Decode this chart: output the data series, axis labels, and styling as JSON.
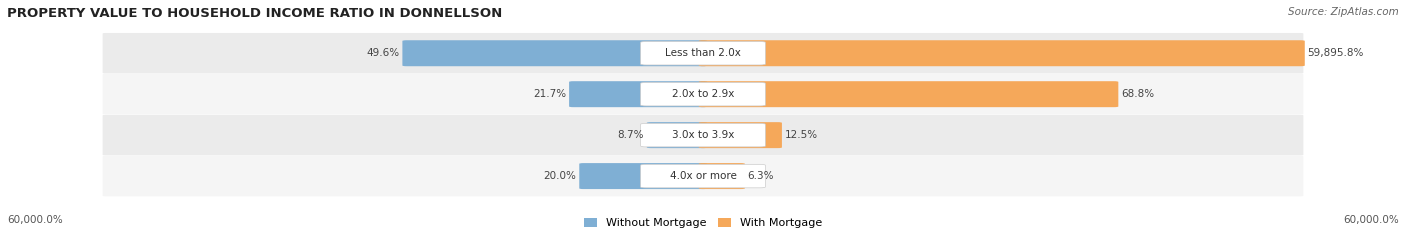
{
  "title": "PROPERTY VALUE TO HOUSEHOLD INCOME RATIO IN DONNELLSON",
  "source": "Source: ZipAtlas.com",
  "categories": [
    "Less than 2.0x",
    "2.0x to 2.9x",
    "3.0x to 3.9x",
    "4.0x or more"
  ],
  "without_mortgage": [
    49.6,
    21.7,
    8.7,
    20.0
  ],
  "with_mortgage": [
    59895.8,
    68.8,
    12.5,
    6.3
  ],
  "without_mortgage_labels": [
    "49.6%",
    "21.7%",
    "8.7%",
    "20.0%"
  ],
  "with_mortgage_labels": [
    "59,895.8%",
    "68.8%",
    "12.5%",
    "6.3%"
  ],
  "color_without": "#7fafd4",
  "color_with": "#f5a85a",
  "row_colors": [
    "#ebebeb",
    "#f5f5f5",
    "#ebebeb",
    "#f5f5f5"
  ],
  "xlabel_left": "60,000.0%",
  "xlabel_right": "60,000.0%",
  "legend_without": "Without Mortgage",
  "legend_with": "With Mortgage",
  "title_fontsize": 9.5,
  "label_fontsize": 7.5,
  "axis_label_fontsize": 7.5,
  "max_val": 60000.0
}
